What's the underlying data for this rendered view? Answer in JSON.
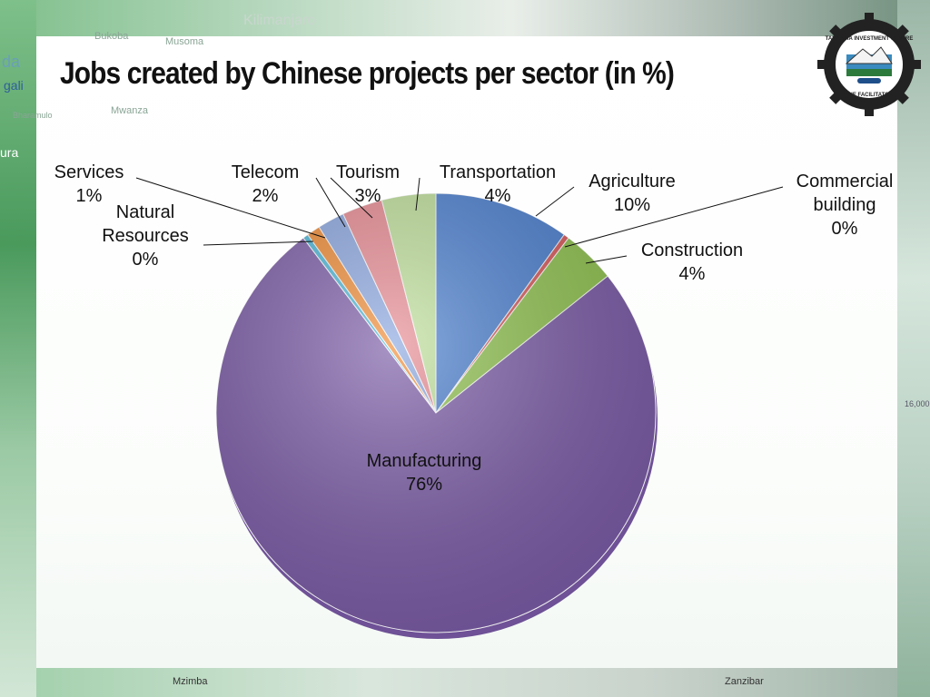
{
  "slide": {
    "title": "Jobs created by Chinese projects per sector (in %)",
    "map_labels": [
      "Kilimanjaro",
      "Bukoba",
      "Musoma",
      "Mwanza",
      "Bharamulo",
      "gali",
      "da",
      "ura",
      "Mzimba",
      "Zanzibar",
      "16,000"
    ],
    "colors": {
      "accent_green": "#3f8f52",
      "panel": "#ffffff"
    }
  },
  "logo": {
    "name": "tanzania-investment-centre-logo",
    "text_top": "TANZANIA INVESTMENT CENTRE",
    "text_bottom": "THE FACILITATOR"
  },
  "chart_data": {
    "type": "pie",
    "title": "",
    "slices": [
      {
        "label": "Agriculture",
        "value_label": "10%",
        "value": 10,
        "color": "#4a7fd0"
      },
      {
        "label": "Commercial building",
        "value_label": "0%",
        "value": 0.4,
        "color": "#d9585a"
      },
      {
        "label": "Construction",
        "value_label": "4%",
        "value": 4,
        "color": "#8fc24e"
      },
      {
        "label": "Manufacturing",
        "value_label": "76%",
        "value": 76,
        "color": "#7a5aa6"
      },
      {
        "label": "Natural Resources",
        "value_label": "0%",
        "value": 0.4,
        "color": "#4ab6d8"
      },
      {
        "label": "Services",
        "value_label": "1%",
        "value": 1,
        "color": "#f08a32"
      },
      {
        "label": "Telecom",
        "value_label": "2%",
        "value": 2,
        "color": "#8aa6e0"
      },
      {
        "label": "Tourism",
        "value_label": "3%",
        "value": 3,
        "color": "#e88a92"
      },
      {
        "label": "Transportation",
        "value_label": "4%",
        "value": 4,
        "color": "#bfe09a"
      }
    ]
  }
}
